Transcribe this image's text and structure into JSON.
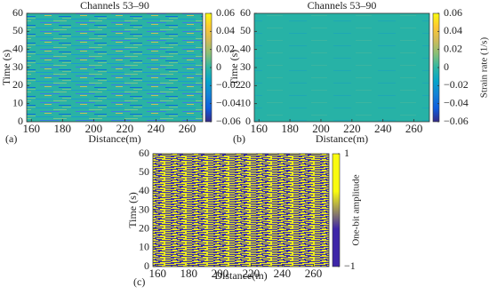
{
  "chart_data": [
    {
      "type": "heatmap",
      "panel_label": "(a)",
      "title": "Channels 53–90",
      "xlabel": "Distance(m)",
      "ylabel": "Time (s)",
      "xlim": [
        157,
        270
      ],
      "xticks": [
        160,
        180,
        200,
        220,
        240,
        260
      ],
      "ylim": [
        0,
        60
      ],
      "yticks": [
        0,
        10,
        20,
        30,
        40,
        50,
        60
      ],
      "clim": [
        -0.06,
        0.06
      ],
      "cticks": [
        {
          "value": -0.06,
          "label": "−0.06"
        },
        {
          "value": -0.04,
          "label": "−0.04"
        },
        {
          "value": -0.02,
          "label": "−0.02"
        },
        0,
        0.02,
        0.04,
        0.06
      ],
      "colormap": [
        "#352a87",
        "#0f5cdd",
        "#1481d6",
        "#06a4ca",
        "#2eb7a4",
        "#87bf77",
        "#d1bb59",
        "#fec832",
        "#f9fb0e"
      ]
    },
    {
      "type": "heatmap",
      "panel_label": "(b)",
      "title": "Channels 53–90",
      "xlabel": "Distance(m)",
      "ylabel": "Time (s)",
      "colorbar_label": "Strain rate (1/s)",
      "xlim": [
        157,
        270
      ],
      "xticks": [
        160,
        180,
        200,
        220,
        240,
        260
      ],
      "ylim": [
        0,
        60
      ],
      "yticks": [
        0,
        10,
        20,
        30,
        40,
        50,
        60
      ],
      "clim": [
        -0.06,
        0.06
      ],
      "cticks": [
        {
          "value": -0.06,
          "label": "−0.06"
        },
        {
          "value": -0.04,
          "label": "−0.04"
        },
        {
          "value": -0.02,
          "label": "−0.02"
        },
        0,
        0.02,
        0.04,
        0.06
      ],
      "colormap": [
        "#352a87",
        "#0f5cdd",
        "#1481d6",
        "#06a4ca",
        "#2eb7a4",
        "#87bf77",
        "#d1bb59",
        "#fec832",
        "#f9fb0e"
      ]
    },
    {
      "type": "heatmap",
      "panel_label": "(c)",
      "xlabel": "Distance(m)",
      "ylabel": "Time (s)",
      "colorbar_label": "One-bit amplitude",
      "xlim": [
        157,
        270
      ],
      "xticks": [
        160,
        180,
        200,
        220,
        240,
        260
      ],
      "ylim": [
        0,
        60
      ],
      "yticks": [
        0,
        10,
        20,
        30,
        40,
        50,
        60
      ],
      "clim": [
        -1,
        1
      ],
      "cticks": [
        {
          "value": -1,
          "label": "−1"
        },
        1
      ],
      "colormap": [
        "#3e26a8",
        "#3e26a8",
        "#f9fb0e",
        "#f9fb0e"
      ]
    }
  ]
}
